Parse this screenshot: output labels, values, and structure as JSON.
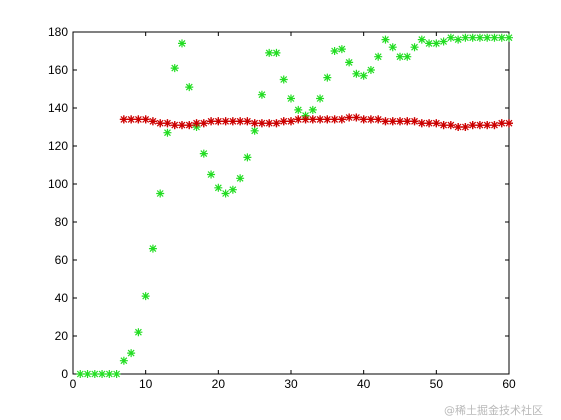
{
  "chart_data": {
    "type": "scatter",
    "title": "",
    "xlabel": "",
    "ylabel": "",
    "xlim": [
      0,
      60
    ],
    "ylim": [
      0,
      180
    ],
    "xticks": [
      0,
      10,
      20,
      30,
      40,
      50,
      60
    ],
    "yticks": [
      0,
      20,
      40,
      60,
      80,
      100,
      120,
      140,
      160,
      180
    ],
    "grid": false,
    "legend": "none",
    "series": [
      {
        "marker": "*",
        "color": "#22dd22",
        "x": [
          1,
          2,
          3,
          4,
          5,
          6,
          7,
          8,
          9,
          10,
          11,
          12,
          13,
          14,
          15,
          16,
          17,
          18,
          19,
          20,
          21,
          22,
          23,
          24,
          25,
          26,
          27,
          28,
          29,
          30,
          31,
          32,
          33,
          34,
          35,
          36,
          37,
          38,
          39,
          40,
          41,
          42,
          43,
          44,
          45,
          46,
          47,
          48,
          49,
          50,
          51,
          52,
          53,
          54,
          55,
          56,
          57,
          58,
          59,
          60
        ],
        "y": [
          0,
          0,
          0,
          0,
          0,
          0,
          7,
          11,
          22,
          41,
          66,
          95,
          127,
          161,
          174,
          151,
          130,
          116,
          105,
          98,
          95,
          97,
          103,
          114,
          128,
          147,
          169,
          169,
          155,
          145,
          139,
          136,
          139,
          145,
          156,
          170,
          171,
          164,
          158,
          157,
          160,
          167,
          176,
          172,
          167,
          167,
          172,
          176,
          174,
          174,
          175,
          177,
          176,
          177,
          177,
          177,
          177,
          177,
          177,
          177
        ]
      },
      {
        "marker": "+",
        "color": "#cc0000",
        "x": [
          7,
          8,
          9,
          10,
          11,
          12,
          13,
          14,
          15,
          16,
          17,
          18,
          19,
          20,
          21,
          22,
          23,
          24,
          25,
          26,
          27,
          28,
          29,
          30,
          31,
          32,
          33,
          34,
          35,
          36,
          37,
          38,
          39,
          40,
          41,
          42,
          43,
          44,
          45,
          46,
          47,
          48,
          49,
          50,
          51,
          52,
          53,
          54,
          55,
          56,
          57,
          58,
          59,
          60
        ],
        "y": [
          134,
          134,
          134,
          134,
          133,
          132,
          132,
          131,
          131,
          131,
          132,
          132,
          133,
          133,
          133,
          133,
          133,
          133,
          132,
          132,
          132,
          132,
          133,
          133,
          134,
          134,
          134,
          134,
          134,
          134,
          134,
          135,
          135,
          134,
          134,
          134,
          133,
          133,
          133,
          133,
          133,
          132,
          132,
          132,
          131,
          131,
          130,
          130,
          131,
          131,
          131,
          131,
          132,
          132
        ]
      },
      {
        "marker": "*",
        "color": "#cc0000",
        "x": [
          7,
          8,
          9,
          10,
          11,
          12,
          13,
          14,
          15,
          16,
          17,
          18,
          19,
          20,
          21,
          22,
          23,
          24,
          25,
          26,
          27,
          28,
          29,
          30,
          31,
          32,
          33,
          34,
          35,
          36,
          37,
          38,
          39,
          40,
          41,
          42,
          43,
          44,
          45,
          46,
          47,
          48,
          49,
          50,
          51,
          52,
          53,
          54,
          55,
          56,
          57,
          58,
          59,
          60
        ],
        "y": [
          134,
          134,
          134,
          134,
          133,
          132,
          132,
          131,
          131,
          131,
          132,
          132,
          133,
          133,
          133,
          133,
          133,
          133,
          132,
          132,
          132,
          132,
          133,
          133,
          134,
          134,
          134,
          134,
          134,
          134,
          134,
          135,
          135,
          134,
          134,
          134,
          133,
          133,
          133,
          133,
          133,
          132,
          132,
          132,
          131,
          131,
          130,
          130,
          131,
          131,
          131,
          131,
          132,
          132
        ]
      }
    ]
  },
  "watermark": "@稀土掘金技术社区"
}
